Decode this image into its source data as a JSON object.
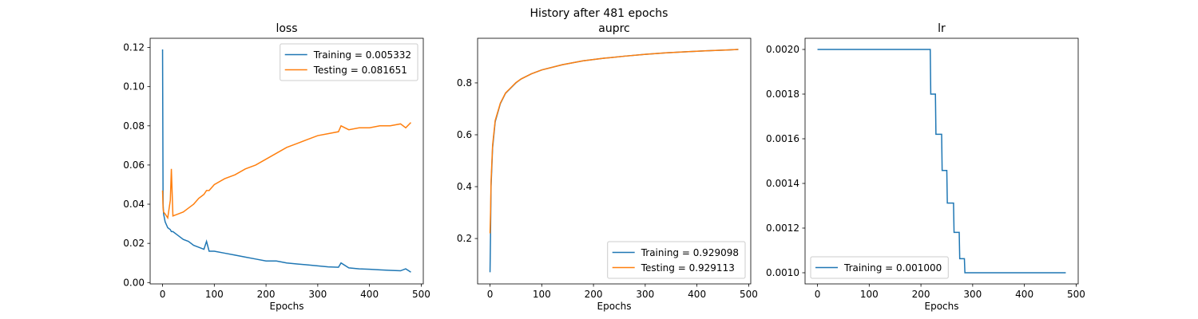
{
  "title": "History after 481 epochs",
  "chart_data": [
    {
      "type": "line",
      "title": "loss",
      "xlabel": "Epochs",
      "legend": "upper right",
      "xlim": [
        -24,
        504
      ],
      "xticks": [
        0,
        100,
        200,
        300,
        400,
        500
      ],
      "ylim": [
        -0.0007,
        0.1247
      ],
      "yticks": [
        {
          "value": 0,
          "label": "0.00"
        },
        0.02,
        0.04,
        0.06,
        0.08,
        {
          "value": 0.1,
          "label": "0.10"
        },
        0.12
      ],
      "x": [
        0,
        1,
        2,
        5,
        10,
        15,
        17,
        20,
        30,
        40,
        50,
        60,
        70,
        80,
        85,
        90,
        100,
        120,
        140,
        160,
        180,
        200,
        220,
        240,
        260,
        280,
        300,
        320,
        340,
        345,
        360,
        380,
        400,
        420,
        440,
        460,
        470,
        480
      ],
      "series": [
        {
          "name": "Training = 0.005332",
          "color": "#1f77b4",
          "values": [
            0.119,
            0.04,
            0.035,
            0.031,
            0.028,
            0.027,
            0.026,
            0.026,
            0.024,
            0.022,
            0.021,
            0.019,
            0.018,
            0.017,
            0.021,
            0.016,
            0.016,
            0.015,
            0.014,
            0.013,
            0.012,
            0.011,
            0.011,
            0.01,
            0.0095,
            0.009,
            0.0085,
            0.008,
            0.0078,
            0.01,
            0.0075,
            0.007,
            0.0068,
            0.0065,
            0.0062,
            0.006,
            0.007,
            0.0053
          ]
        },
        {
          "name": "Testing = 0.081651",
          "color": "#ff7f0e",
          "values": [
            0.047,
            0.038,
            0.036,
            0.035,
            0.033,
            0.042,
            0.058,
            0.034,
            0.035,
            0.036,
            0.038,
            0.04,
            0.043,
            0.045,
            0.047,
            0.047,
            0.05,
            0.053,
            0.055,
            0.058,
            0.06,
            0.063,
            0.066,
            0.069,
            0.071,
            0.073,
            0.075,
            0.076,
            0.077,
            0.08,
            0.078,
            0.079,
            0.079,
            0.08,
            0.08,
            0.081,
            0.079,
            0.0817
          ]
        }
      ]
    },
    {
      "type": "line",
      "title": "auprc",
      "xlabel": "Epochs",
      "legend": "lower right",
      "xlim": [
        -24,
        504
      ],
      "xticks": [
        0,
        100,
        200,
        300,
        400,
        500
      ],
      "ylim": [
        0.025,
        0.972
      ],
      "yticks": [
        0.2,
        0.4,
        0.6,
        0.8
      ],
      "x": [
        0,
        1,
        2,
        5,
        10,
        20,
        30,
        40,
        50,
        60,
        80,
        100,
        140,
        180,
        220,
        260,
        300,
        340,
        380,
        420,
        460,
        480
      ],
      "series": [
        {
          "name": "Training = 0.929098",
          "color": "#1f77b4",
          "values": [
            0.07,
            0.22,
            0.4,
            0.55,
            0.65,
            0.72,
            0.76,
            0.78,
            0.8,
            0.815,
            0.835,
            0.85,
            0.87,
            0.885,
            0.895,
            0.903,
            0.91,
            0.916,
            0.92,
            0.924,
            0.927,
            0.929098
          ]
        },
        {
          "name": "Testing = 0.929113",
          "color": "#ff7f0e",
          "values": [
            0.22,
            0.3,
            0.42,
            0.56,
            0.655,
            0.722,
            0.761,
            0.781,
            0.801,
            0.815,
            0.835,
            0.85,
            0.87,
            0.885,
            0.895,
            0.903,
            0.91,
            0.916,
            0.92,
            0.924,
            0.927,
            0.929113
          ]
        }
      ]
    },
    {
      "type": "line",
      "title": "lr",
      "xlabel": "Epochs",
      "legend": "lower left",
      "xlim": [
        -24,
        504
      ],
      "xticks": [
        0,
        100,
        200,
        300,
        400,
        500
      ],
      "ylim": [
        0.00095,
        0.00205
      ],
      "yticks": [
        {
          "value": 0.001,
          "label": "0.0010"
        },
        {
          "value": 0.0012,
          "label": "0.0012"
        },
        {
          "value": 0.0014,
          "label": "0.0014"
        },
        {
          "value": 0.0016,
          "label": "0.0016"
        },
        {
          "value": 0.0018,
          "label": "0.0018"
        },
        {
          "value": 0.002,
          "label": "0.0020"
        }
      ],
      "x": [
        0,
        218,
        219,
        228,
        229,
        240,
        241,
        250,
        251,
        263,
        264,
        274,
        275,
        284,
        285,
        480
      ],
      "series": [
        {
          "name": "Training = 0.001000",
          "color": "#1f77b4",
          "values": [
            0.002,
            0.002,
            0.0018,
            0.0018,
            0.00162,
            0.00162,
            0.001458,
            0.001458,
            0.001312,
            0.001312,
            0.001181,
            0.001181,
            0.001063,
            0.001063,
            0.001,
            0.001
          ]
        }
      ]
    }
  ]
}
